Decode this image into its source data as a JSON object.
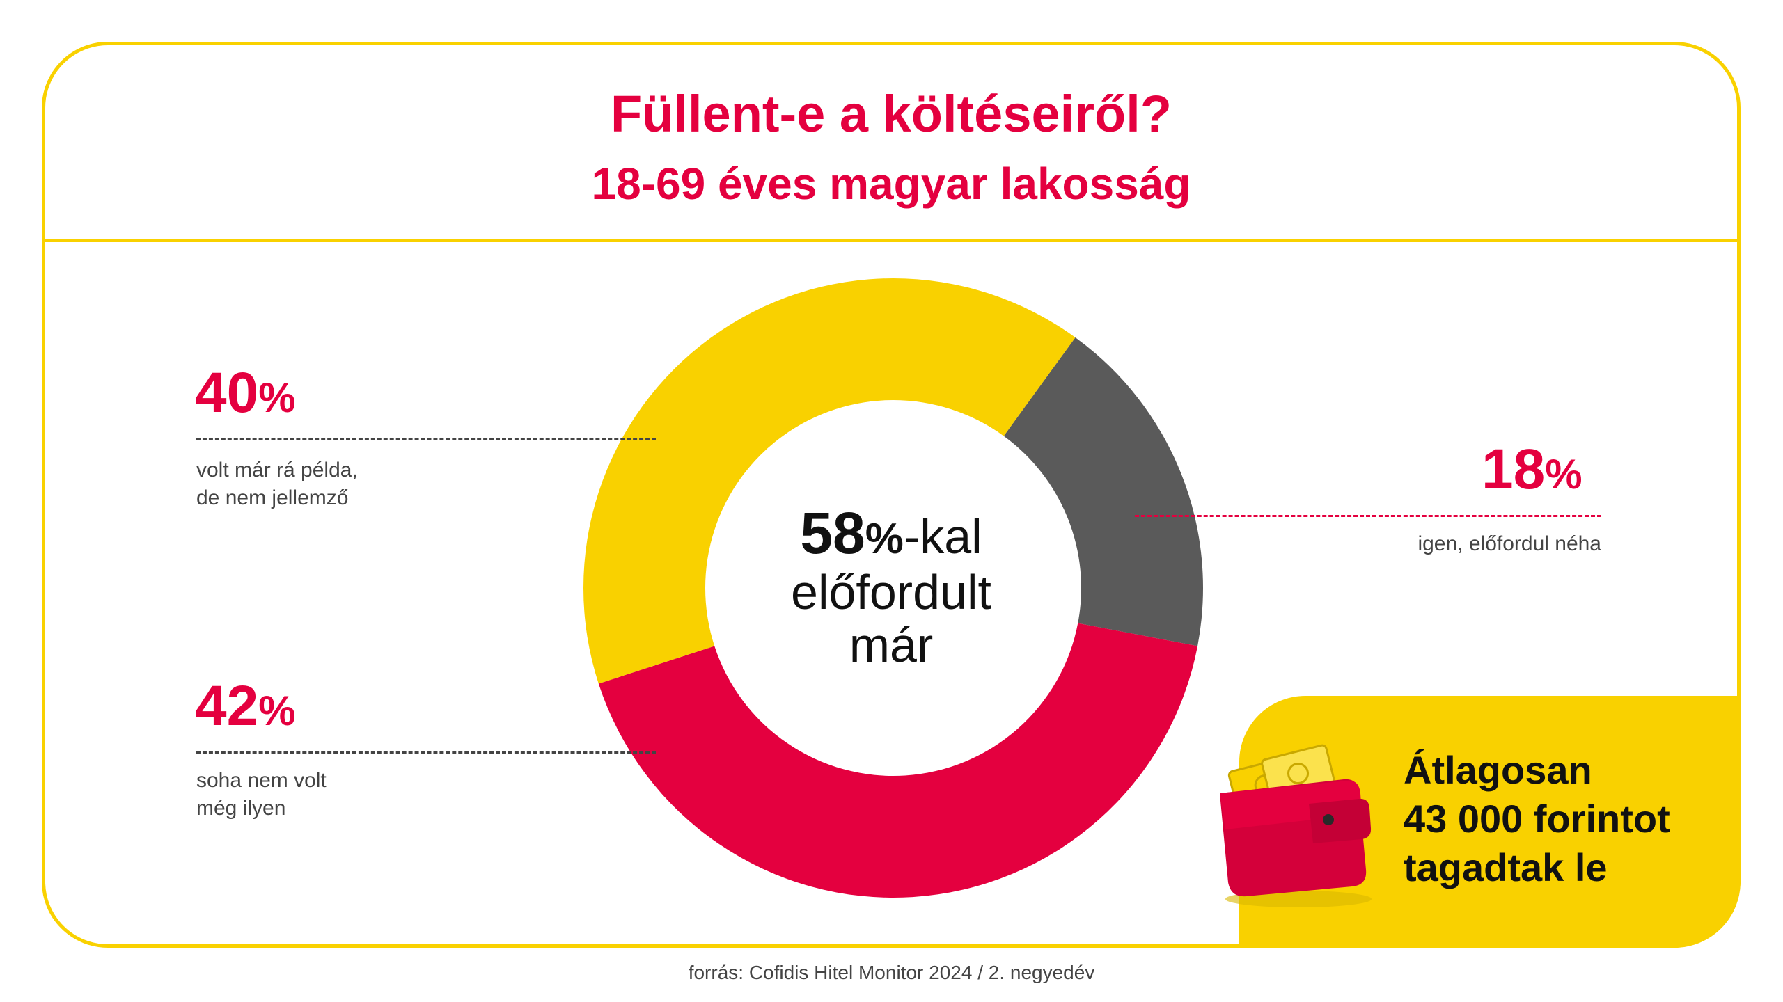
{
  "title": "Füllent-e a költéseiről?",
  "subtitle": "18-69 éves magyar lakosság",
  "center": {
    "big": "58",
    "pct": "%",
    "suffix": "-kal",
    "line2": "előfordult",
    "line3": "már"
  },
  "labels": {
    "left_top": {
      "value": "40",
      "symbol": "%",
      "line1": "volt már rá példa,",
      "line2": "de nem jellemző"
    },
    "right": {
      "value": "18",
      "symbol": "%",
      "line1": "igen, előfordul néha"
    },
    "left_bottom": {
      "value": "42",
      "symbol": "%",
      "line1": "soha nem volt",
      "line2": "még ilyen"
    }
  },
  "callout": {
    "line1": "Átlagosan",
    "line2": "43 000 forintot",
    "line3": "tagadtak le",
    "icon": "wallet-icon"
  },
  "source": "forrás: Cofidis Hitel Monitor 2024 / 2. negyedév",
  "colors": {
    "yellow": "#f9d100",
    "grey": "#5a5a5a",
    "red": "#e4003f"
  },
  "chart_data": {
    "type": "pie",
    "variant": "donut",
    "categories": [
      "igen, előfordul néha",
      "soha nem volt még ilyen",
      "volt már rá példa, de nem jellemző"
    ],
    "values": [
      18,
      42,
      40
    ],
    "colors": [
      "#5a5a5a",
      "#e4003f",
      "#f9d100"
    ],
    "start_angle_deg": 36,
    "direction": "clockwise"
  }
}
